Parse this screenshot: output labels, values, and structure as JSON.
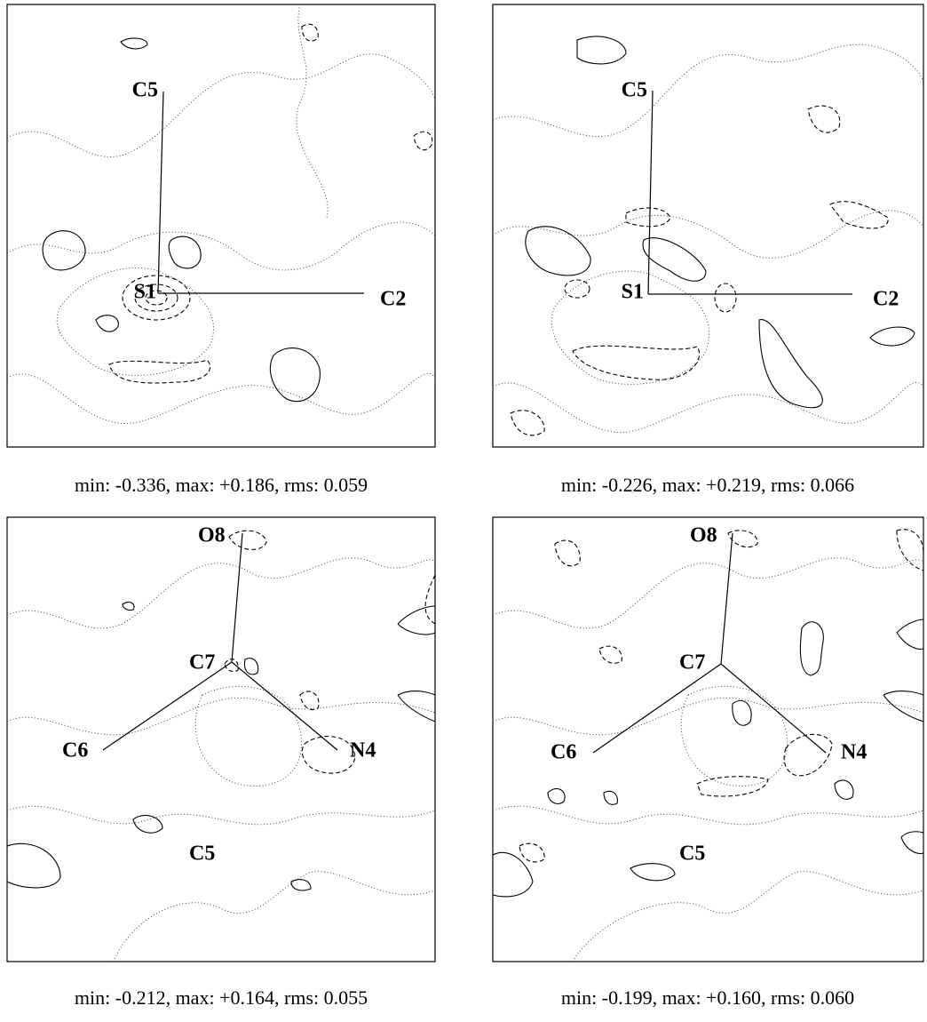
{
  "panels": [
    {
      "atoms": [
        "C5",
        "S1",
        "C2"
      ],
      "caption": "min: -0.336, max: +0.186, rms: 0.059"
    },
    {
      "atoms": [
        "C5",
        "S1",
        "C2"
      ],
      "caption": "min: -0.226, max: +0.219, rms: 0.066"
    },
    {
      "atoms": [
        "O8",
        "C7",
        "C6",
        "N4",
        "C5"
      ],
      "caption": "min: -0.212, max: +0.164, rms: 0.055"
    },
    {
      "atoms": [
        "O8",
        "C7",
        "C6",
        "N4",
        "C5"
      ],
      "caption": "min: -0.199, max: +0.160, rms: 0.060"
    }
  ]
}
